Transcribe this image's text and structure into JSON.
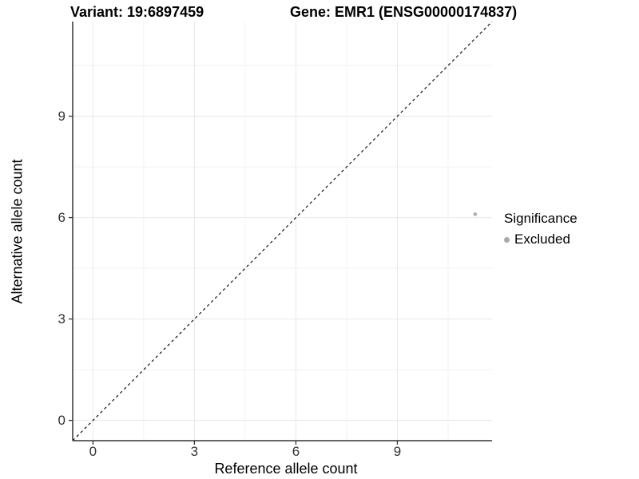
{
  "title": {
    "variant": "Variant: 19:6897459",
    "gene": "Gene: EMR1 (ENSG00000174837)"
  },
  "axes": {
    "x_label": "Reference allele count",
    "y_label": "Alternative allele count"
  },
  "legend": {
    "title": "Significance",
    "entries": [
      {
        "label": "Excluded",
        "color": "#a9a9a9"
      }
    ]
  },
  "chart_data": {
    "type": "scatter",
    "title": "Variant: 19:6897459    Gene: EMR1 (ENSG00000174837)",
    "xlabel": "Reference allele count",
    "ylabel": "Alternative allele count",
    "xlim": [
      -0.6,
      11.8
    ],
    "ylim": [
      -0.6,
      11.8
    ],
    "x_ticks": [
      0,
      3,
      6,
      9
    ],
    "y_ticks": [
      0,
      3,
      6,
      9
    ],
    "x_minor_gridlines": [
      1.5,
      4.5,
      7.5,
      10.5
    ],
    "y_minor_gridlines": [
      1.5,
      4.5,
      7.5,
      10.5
    ],
    "grid": "on",
    "legend_position": "right",
    "legend_title": "Significance",
    "reference_line": {
      "equation": "y = x",
      "style": "dashed",
      "color": "#000000"
    },
    "series": [
      {
        "name": "Excluded",
        "color": "#b0b0b0",
        "point_radius": 2.3,
        "points": [
          {
            "x": 11.3,
            "y": 6.1
          }
        ]
      }
    ],
    "style_colors": {
      "major_grid": "#e8e8e8",
      "minor_grid": "#f2f2f2",
      "axis_line": "#333333",
      "tick_text": "#333333"
    }
  }
}
